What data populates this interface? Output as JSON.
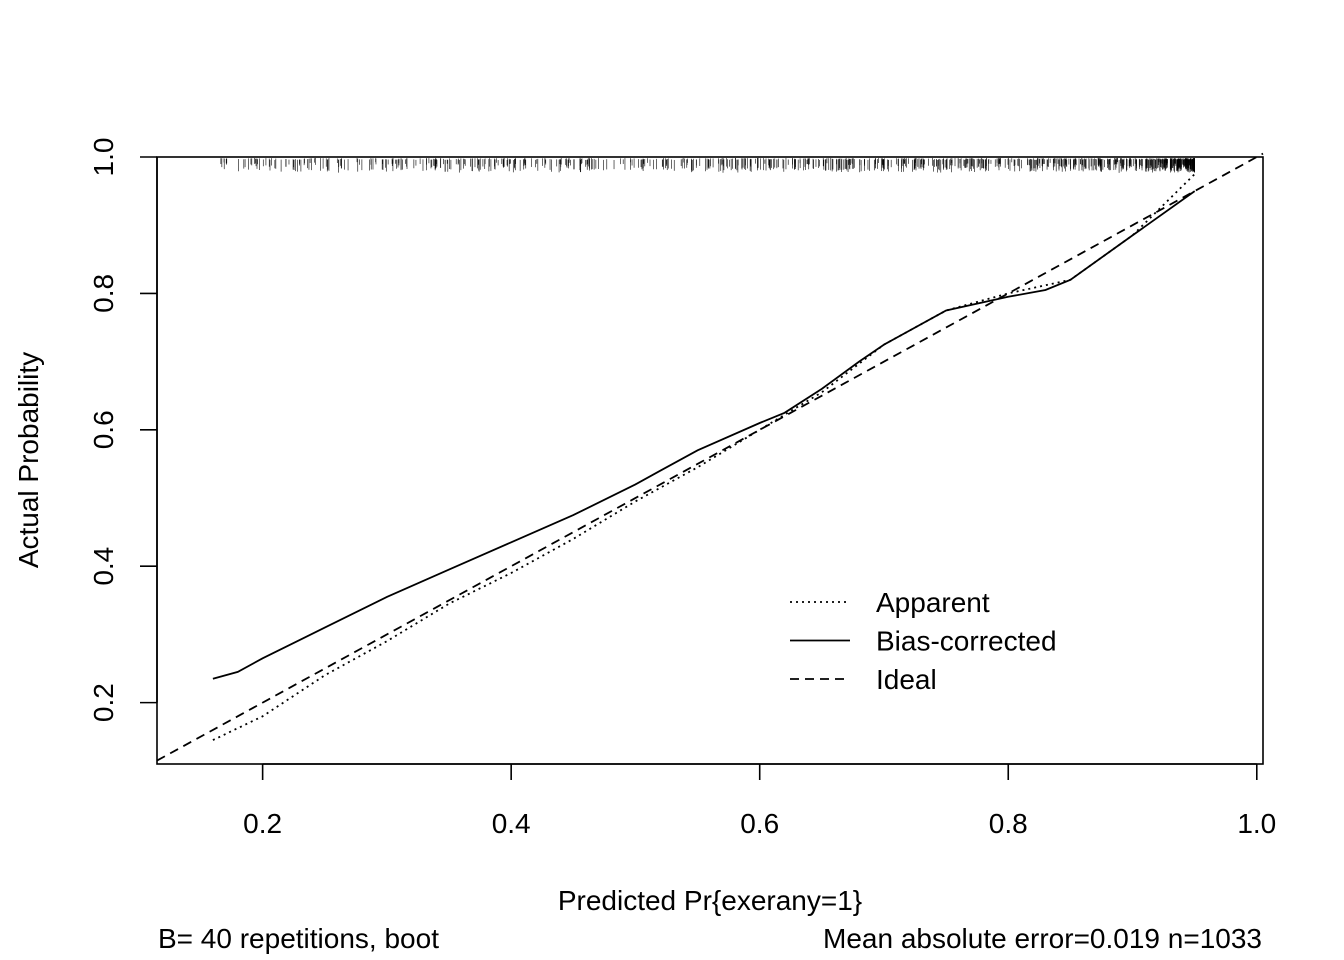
{
  "chart_data": {
    "type": "line",
    "title": "",
    "xlabel": "Predicted Pr{exerany=1}",
    "ylabel": "Actual Probability",
    "xlim": [
      0.115,
      1.005
    ],
    "ylim": [
      0.11,
      1.0
    ],
    "xticks": [
      {
        "value": 0.2,
        "label": "0.2"
      },
      {
        "value": 0.4,
        "label": "0.4"
      },
      {
        "value": 0.6,
        "label": "0.6"
      },
      {
        "value": 0.8,
        "label": "0.8"
      },
      {
        "value": 1.0,
        "label": "1.0"
      }
    ],
    "yticks": [
      {
        "value": 0.2,
        "label": "0.2"
      },
      {
        "value": 0.4,
        "label": "0.4"
      },
      {
        "value": 0.6,
        "label": "0.6"
      },
      {
        "value": 0.8,
        "label": "0.8"
      },
      {
        "value": 1.0,
        "label": "1.0"
      }
    ],
    "grid": false,
    "legend_position": "bottom-right",
    "series": [
      {
        "name": "Apparent",
        "style": "dotted",
        "x": [
          0.16,
          0.2,
          0.25,
          0.3,
          0.35,
          0.4,
          0.45,
          0.5,
          0.55,
          0.6,
          0.65,
          0.7,
          0.75,
          0.8,
          0.85,
          0.9,
          0.95
        ],
        "y": [
          0.145,
          0.18,
          0.24,
          0.29,
          0.345,
          0.39,
          0.44,
          0.495,
          0.545,
          0.6,
          0.655,
          0.725,
          0.775,
          0.8,
          0.82,
          0.885,
          0.975
        ]
      },
      {
        "name": "Bias-corrected",
        "style": "solid",
        "x": [
          0.16,
          0.18,
          0.2,
          0.25,
          0.3,
          0.35,
          0.4,
          0.45,
          0.5,
          0.52,
          0.55,
          0.6,
          0.62,
          0.65,
          0.68,
          0.7,
          0.75,
          0.8,
          0.83,
          0.85,
          0.9,
          0.95
        ],
        "y": [
          0.235,
          0.245,
          0.265,
          0.31,
          0.355,
          0.395,
          0.435,
          0.475,
          0.52,
          0.54,
          0.57,
          0.61,
          0.625,
          0.66,
          0.7,
          0.725,
          0.775,
          0.795,
          0.805,
          0.82,
          0.885,
          0.95
        ]
      },
      {
        "name": "Ideal",
        "style": "dashed",
        "x": [
          0.115,
          1.005
        ],
        "y": [
          0.115,
          1.005
        ]
      }
    ],
    "rug_description": "distribution of predicted probabilities drawn as tick marks along top of plot"
  },
  "footer": {
    "left": "B= 40 repetitions, boot",
    "right": "Mean absolute error=0.019 n=1033"
  }
}
